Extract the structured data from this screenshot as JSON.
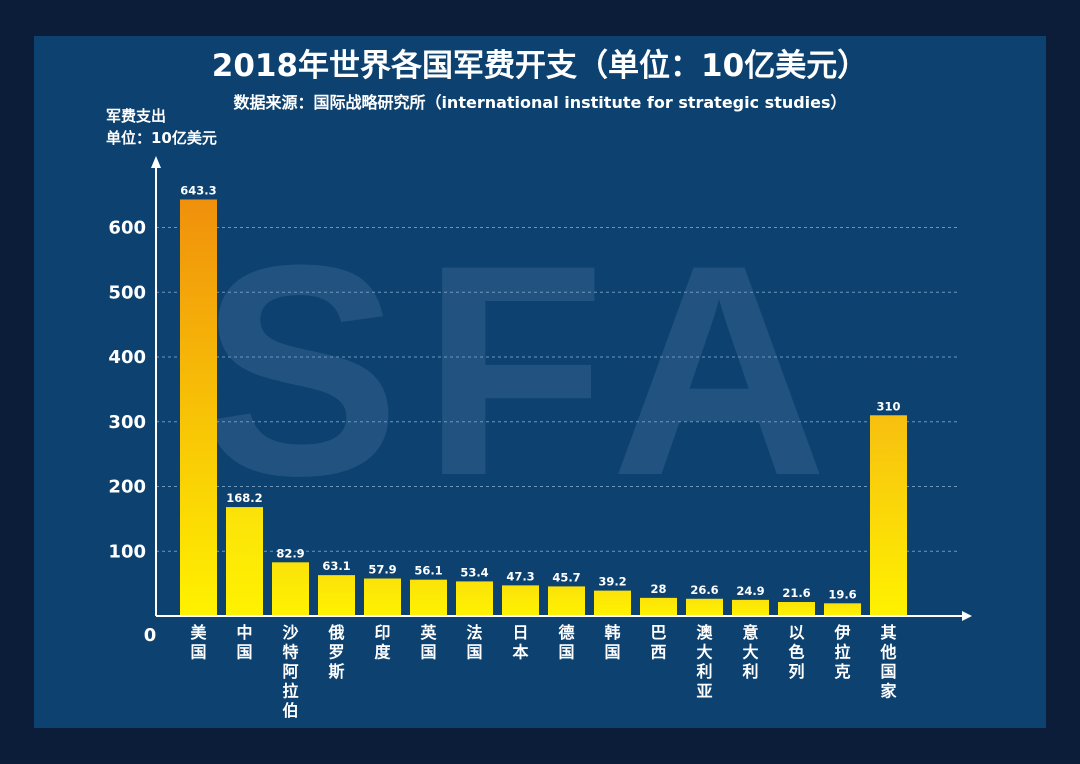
{
  "title": "2018年世界各国军费开支（单位：10亿美元）",
  "subtitle": "数据来源：国际战略研究所（international institute for strategic studies）",
  "watermark": "SFA",
  "colors": {
    "background": "#0c4170",
    "bar_top_max": "#f0900c",
    "bar_yellow": "#fff200",
    "axis": "#ffffff"
  },
  "chart_data": {
    "type": "bar",
    "title": "2018年世界各国军费开支（单位：10亿美元）",
    "ylabel_line1": "军费支出",
    "ylabel_line2": "单位：10亿美元",
    "ylim": [
      0,
      650
    ],
    "yticks": [
      0,
      100,
      200,
      300,
      400,
      500,
      600
    ],
    "grid": true,
    "categories": [
      "美国",
      "中国",
      "沙特阿拉伯",
      "俄罗斯",
      "印度",
      "英国",
      "法国",
      "日本",
      "德国",
      "韩国",
      "巴西",
      "澳大利亚",
      "意大利",
      "以色列",
      "伊拉克",
      "其他国家"
    ],
    "values": [
      643.3,
      168.2,
      82.9,
      63.1,
      57.9,
      56.1,
      53.4,
      47.3,
      45.7,
      39.2,
      28,
      26.6,
      24.9,
      21.6,
      19.6,
      310
    ],
    "value_labels": [
      "643.3",
      "168.2",
      "82.9",
      "63.1",
      "57.9",
      "56.1",
      "53.4",
      "47.3",
      "45.7",
      "39.2",
      "28",
      "26.6",
      "24.9",
      "21.6",
      "19.6",
      "310"
    ]
  }
}
